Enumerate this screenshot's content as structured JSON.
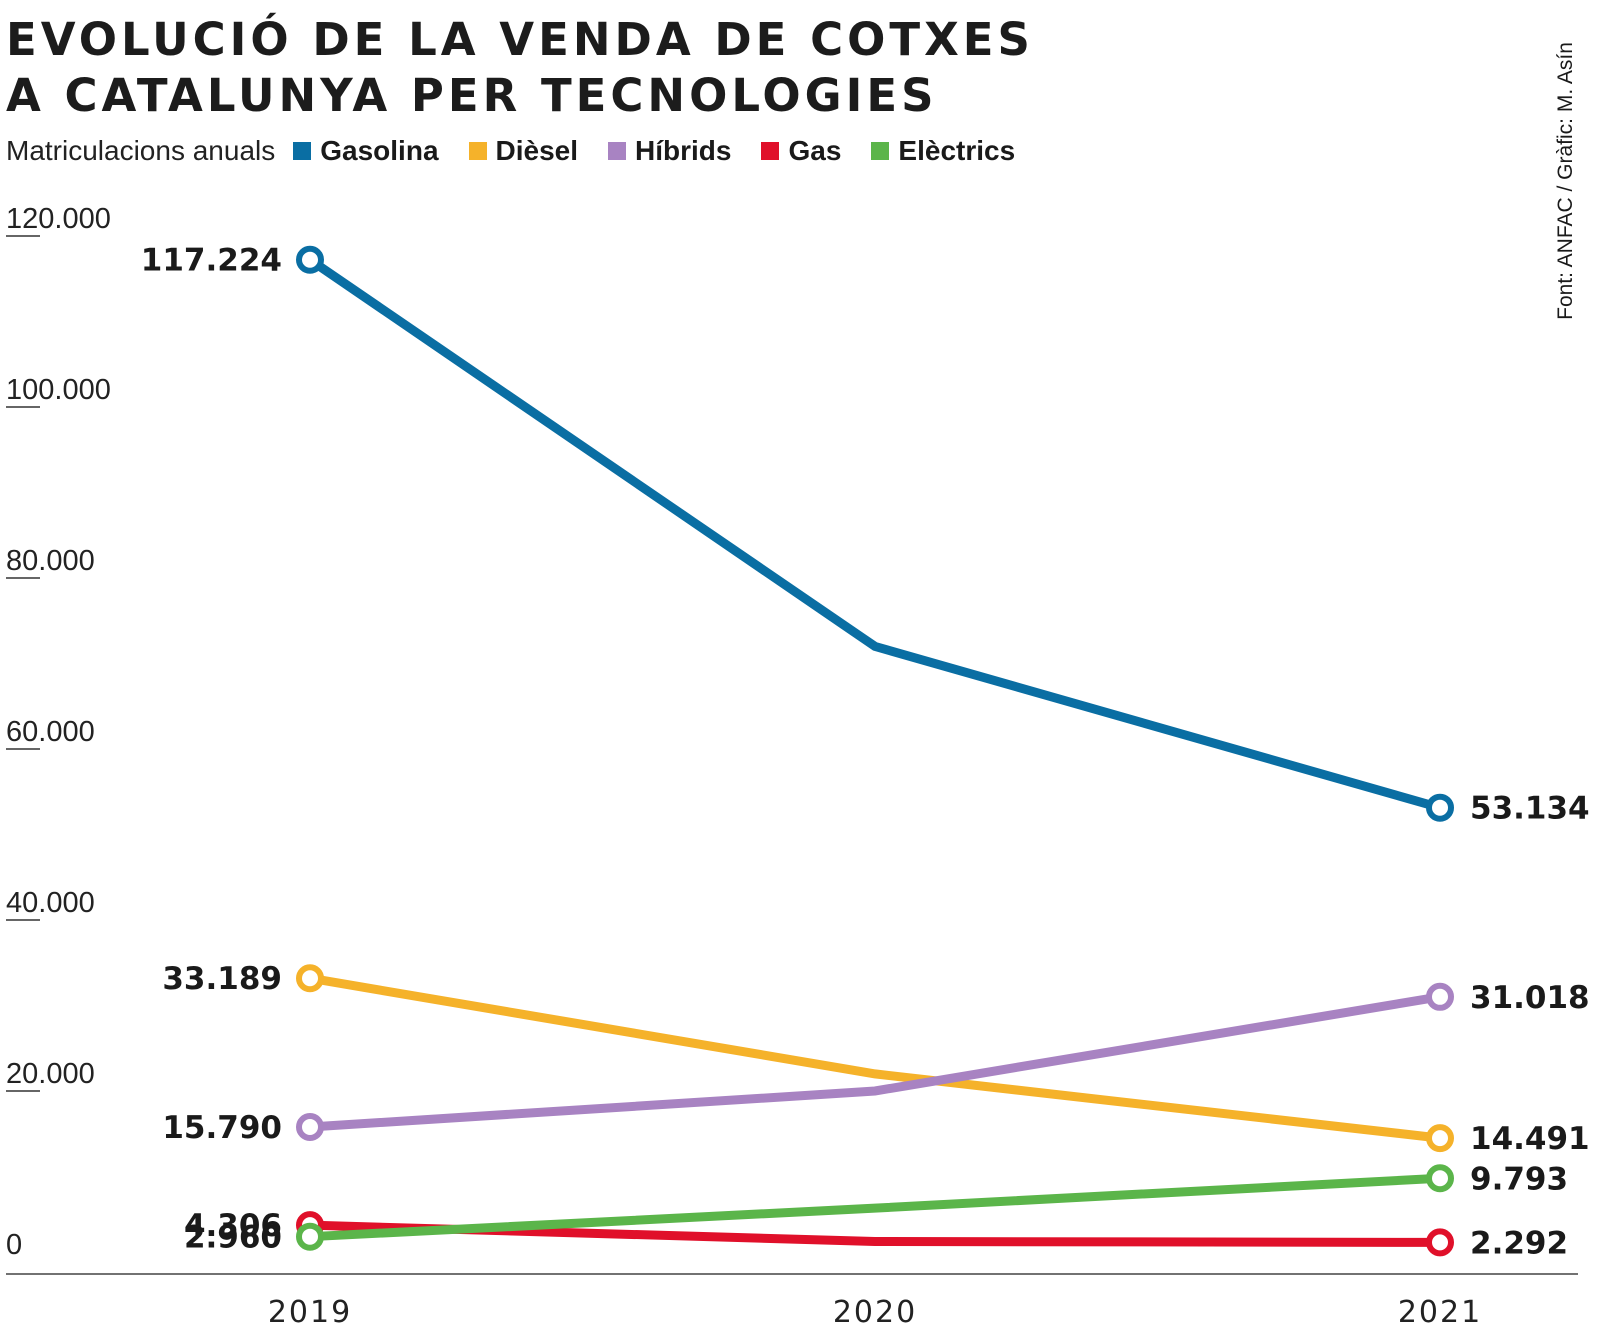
{
  "title_lines": [
    "EVOLUCIÓ DE LA VENDA DE COTXES",
    "A CATALUNYA PER TECNOLOGIES"
  ],
  "subtitle": "Matriculacions anuals",
  "source": "Font: ANFAC / Gràfic: M. Asín",
  "legend": [
    {
      "label": "Gasolina",
      "color": "#0a6ea3"
    },
    {
      "label": "Dièsel",
      "color": "#f5b22a"
    },
    {
      "label": "Híbrids",
      "color": "#a883c2"
    },
    {
      "label": "Gas",
      "color": "#e0102a"
    },
    {
      "label": "Elèctrics",
      "color": "#5bb54a"
    }
  ],
  "chart_data": {
    "type": "line",
    "title": "EVOLUCIÓ DE LA VENDA DE COTXES A CATALUNYA PER TECNOLOGIES",
    "subtitle": "Matriculacions anuals",
    "xlabel": "",
    "ylabel": "",
    "categories": [
      "2019",
      "2020",
      "2021"
    ],
    "ylim": [
      0,
      120000
    ],
    "yticks": [
      0,
      20000,
      40000,
      60000,
      80000,
      100000,
      120000
    ],
    "ytick_labels": [
      "0",
      "20.000",
      "40.000",
      "60.000",
      "80.000",
      "100.000",
      "120.000"
    ],
    "grid": false,
    "legend_position": "top-left",
    "series": [
      {
        "name": "Gasolina",
        "color": "#0a6ea3",
        "values": [
          117224,
          72000,
          53134
        ],
        "labels": [
          "117.224",
          "",
          "53.134"
        ]
      },
      {
        "name": "Dièsel",
        "color": "#f5b22a",
        "values": [
          33189,
          22000,
          14491
        ],
        "labels": [
          "33.189",
          "",
          "14.491"
        ]
      },
      {
        "name": "Híbrids",
        "color": "#a883c2",
        "values": [
          15790,
          20000,
          31018
        ],
        "labels": [
          "15.790",
          "",
          "31.018"
        ]
      },
      {
        "name": "Gas",
        "color": "#e0102a",
        "values": [
          4306,
          2400,
          2292
        ],
        "labels": [
          "4.306",
          "",
          "2.292"
        ]
      },
      {
        "name": "Elèctrics",
        "color": "#5bb54a",
        "values": [
          2960,
          6300,
          9793
        ],
        "labels": [
          "2.960",
          "",
          "9.793"
        ]
      }
    ]
  }
}
